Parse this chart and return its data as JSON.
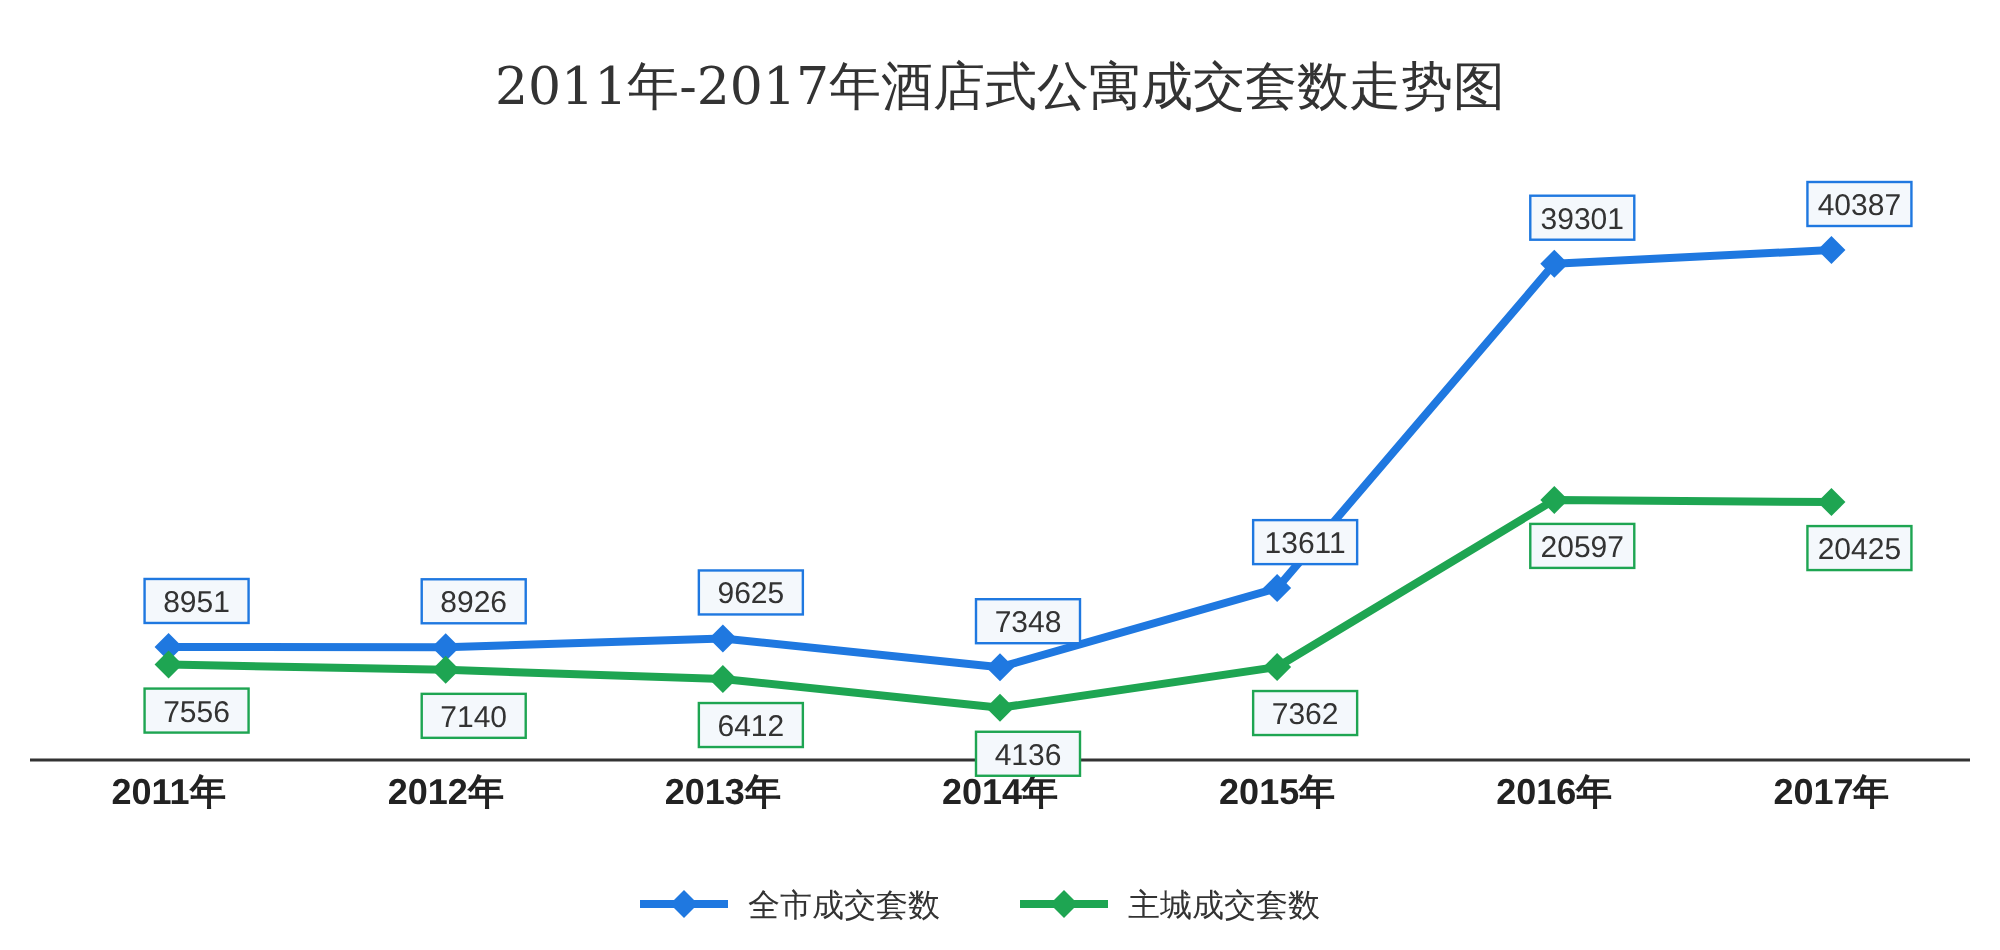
{
  "chart_data": {
    "type": "line",
    "title": "2011年-2017年酒店式公寓成交套数走势图",
    "categories": [
      "2011年",
      "2012年",
      "2013年",
      "2014年",
      "2015年",
      "2016年",
      "2017年"
    ],
    "series": [
      {
        "name": "全市成交套数",
        "color": "#1f78e0",
        "values": [
          8951,
          8926,
          9625,
          7348,
          13611,
          39301,
          40387
        ]
      },
      {
        "name": "主城成交套数",
        "color": "#1ea552",
        "values": [
          7556,
          7140,
          6412,
          4136,
          7362,
          20597,
          20425
        ]
      }
    ],
    "data_labels": true,
    "marker": "diamond",
    "line_style": "solid",
    "legend": "bottom",
    "tick_labels": "x"
  }
}
